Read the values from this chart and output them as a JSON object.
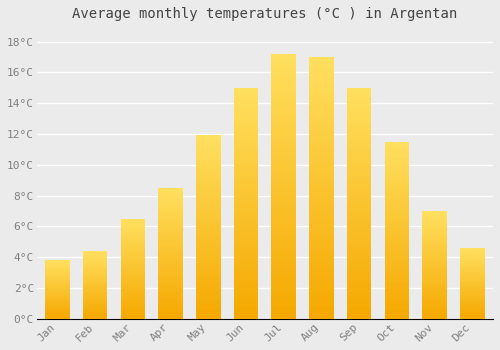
{
  "title": "Average monthly temperatures (°C ) in Argentan",
  "months": [
    "Jan",
    "Feb",
    "Mar",
    "Apr",
    "May",
    "Jun",
    "Jul",
    "Aug",
    "Sep",
    "Oct",
    "Nov",
    "Dec"
  ],
  "values": [
    3.8,
    4.4,
    6.5,
    8.5,
    11.9,
    15.0,
    17.2,
    17.0,
    15.0,
    11.5,
    7.0,
    4.6
  ],
  "bar_color_bottom": "#F5A800",
  "bar_color_top": "#FFE060",
  "ylim": [
    0,
    19
  ],
  "yticks": [
    0,
    2,
    4,
    6,
    8,
    10,
    12,
    14,
    16,
    18
  ],
  "ytick_labels": [
    "0°C",
    "2°C",
    "4°C",
    "6°C",
    "8°C",
    "10°C",
    "12°C",
    "14°C",
    "16°C",
    "18°C"
  ],
  "background_color": "#EBEBEB",
  "grid_color": "#FFFFFF",
  "title_fontsize": 10,
  "tick_fontsize": 8,
  "bar_width": 0.65,
  "n_grad": 60
}
